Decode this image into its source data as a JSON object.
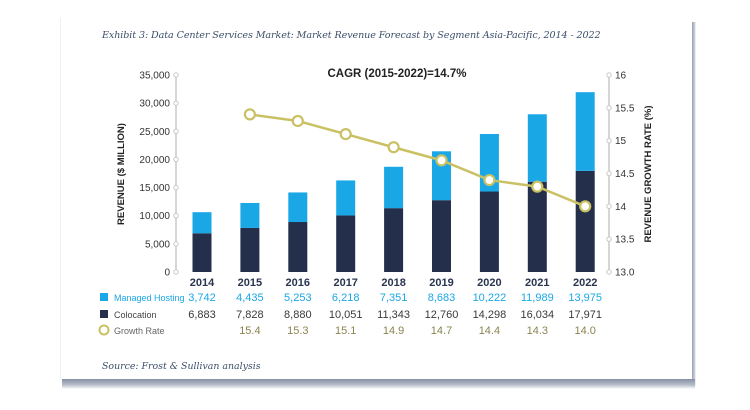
{
  "exhibit_title": "Exhibit 3: Data Center Services Market: Market Revenue Forecast by Segment Asia-Pacific, 2014 - 2022",
  "source": "Source: Frost & Sullivan analysis",
  "colors": {
    "managed_hosting": "#1aa7e6",
    "colocation": "#232f4b",
    "growth_rate": "#c9c163",
    "axis": "#c8c8c8",
    "label_managed": "#1aa7e6",
    "label_colocation": "#3a3a3a",
    "label_growth": "#8a8450"
  },
  "chart_data": {
    "type": "bar",
    "stacked": true,
    "title": "Exhibit 3: Data Center Services Market: Market Revenue Forecast by Segment Asia-Pacific, 2014 - 2022",
    "annotation": "CAGR (2015-2022)=14.7%",
    "categories": [
      "2014",
      "2015",
      "2016",
      "2017",
      "2018",
      "2019",
      "2020",
      "2021",
      "2022"
    ],
    "series": [
      {
        "name": "Colocation",
        "type": "bar",
        "axis": "left",
        "values": [
          6883,
          7828,
          8880,
          10051,
          11343,
          12760,
          14298,
          16034,
          17971
        ],
        "labels": [
          "6,883",
          "7,828",
          "8,880",
          "10,051",
          "11,343",
          "12,760",
          "14,298",
          "16,034",
          "17,971"
        ]
      },
      {
        "name": "Managed Hosting",
        "type": "bar",
        "axis": "left",
        "values": [
          3742,
          4435,
          5253,
          6218,
          7351,
          8683,
          10222,
          11989,
          13975
        ],
        "labels": [
          "3,742",
          "4,435",
          "5,253",
          "6,218",
          "7,351",
          "8,683",
          "10,222",
          "11,989",
          "13,975"
        ]
      },
      {
        "name": "Growth Rate",
        "type": "line",
        "axis": "right",
        "values": [
          null,
          15.4,
          15.3,
          15.1,
          14.9,
          14.7,
          14.4,
          14.3,
          14.0
        ],
        "labels": [
          "",
          "15.4",
          "15.3",
          "15.1",
          "14.9",
          "14.7",
          "14.4",
          "14.3",
          "14.0"
        ]
      }
    ],
    "ylabel": "REVENUE ($ MILLION)",
    "ylim": [
      0,
      35000
    ],
    "yticks": [
      "0",
      "5,000",
      "10,000",
      "15,000",
      "20,000",
      "25,000",
      "30,000",
      "35,000"
    ],
    "ytick_values": [
      0,
      5000,
      10000,
      15000,
      20000,
      25000,
      30000,
      35000
    ],
    "y2label": "REVENUE GROWTH RATE (%)",
    "y2lim": [
      13.0,
      16.0
    ],
    "y2ticks": [
      "13.0",
      "13.5",
      "14",
      "14.5",
      "15",
      "15.5",
      "16"
    ],
    "y2tick_values": [
      13.0,
      13.5,
      14.0,
      14.5,
      15.0,
      15.5,
      16.0
    ],
    "legend": [
      "Managed Hosting",
      "Colocation",
      "Growth Rate"
    ],
    "legend_placement": "bottom-left (data table)",
    "grid": false
  }
}
